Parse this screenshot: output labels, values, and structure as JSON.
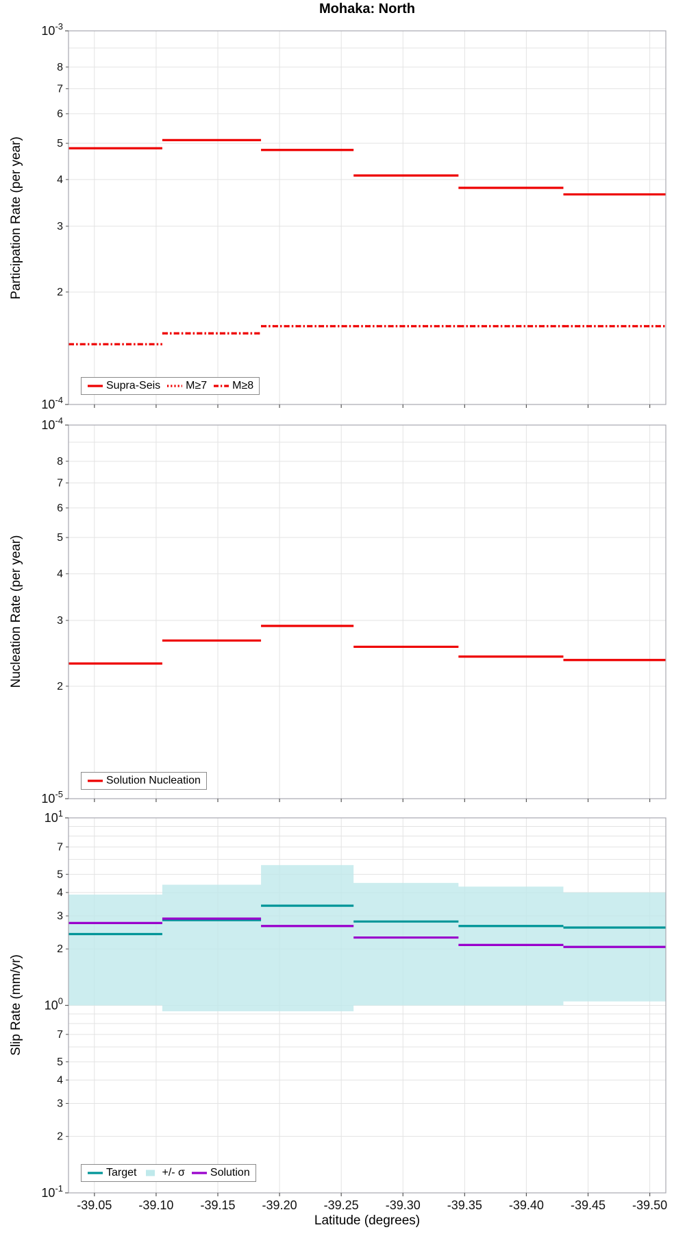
{
  "title": "Mohaka: North",
  "xlabel": "Latitude (degrees)",
  "x_domain": [
    -39.029,
    -39.513
  ],
  "segment_boundaries": [
    -39.029,
    -39.105,
    -39.185,
    -39.26,
    -39.345,
    -39.43,
    -39.513
  ],
  "x_ticks": [
    {
      "v": -39.05,
      "label": "-39.05"
    },
    {
      "v": -39.1,
      "label": "-39.10"
    },
    {
      "v": -39.15,
      "label": "-39.15"
    },
    {
      "v": -39.2,
      "label": "-39.20"
    },
    {
      "v": -39.25,
      "label": "-39.25"
    },
    {
      "v": -39.3,
      "label": "-39.30"
    },
    {
      "v": -39.35,
      "label": "-39.35"
    },
    {
      "v": -39.4,
      "label": "-39.40"
    },
    {
      "v": -39.45,
      "label": "-39.45"
    },
    {
      "v": -39.5,
      "label": "-39.50"
    }
  ],
  "colors": {
    "red": "#ee0000",
    "teal": "#009598",
    "band": "#bfe9eb",
    "purple": "#9900cc",
    "grid": "#e3e3e3",
    "frame": "#a8a8b0"
  },
  "chart_data": [
    {
      "type": "step-line",
      "yscale": "log",
      "ylabel": "Participation Rate (per year)",
      "ylim": [
        0.0001,
        0.001
      ],
      "legend_position": "lower left",
      "y_major_ticks": [
        {
          "value": 0.001,
          "base": "10",
          "exp": "-3"
        },
        {
          "value": 0.0001,
          "base": "10",
          "exp": "-4"
        }
      ],
      "y_minor_labels": [
        {
          "value": 0.0008,
          "label": "8"
        },
        {
          "value": 0.0007,
          "label": "7"
        },
        {
          "value": 0.0006,
          "label": "6"
        },
        {
          "value": 0.0005,
          "label": "5"
        },
        {
          "value": 0.0004,
          "label": "4"
        },
        {
          "value": 0.0003,
          "label": "3"
        },
        {
          "value": 0.0002,
          "label": "2"
        }
      ],
      "series": [
        {
          "name": "Supra-Seis",
          "linestyle": "solid",
          "color": "red",
          "values": [
            0.000485,
            0.00051,
            0.00048,
            0.00041,
            0.00038,
            0.000365
          ]
        },
        {
          "name": "M≥7",
          "linestyle": "dotted",
          "color": "red",
          "values": [
            0.000145,
            0.000155,
            0.000162,
            0.000162,
            0.000162,
            0.000162
          ]
        },
        {
          "name": "M≥8",
          "linestyle": "dashdot",
          "color": "red",
          "values": [
            0.000145,
            0.000155,
            0.000162,
            0.000162,
            0.000162,
            0.000162
          ]
        }
      ]
    },
    {
      "type": "step-line",
      "yscale": "log",
      "ylabel": "Nucleation Rate (per year)",
      "ylim": [
        1e-05,
        0.0001
      ],
      "legend_position": "lower left",
      "y_major_ticks": [
        {
          "value": 0.0001,
          "base": "10",
          "exp": "-4"
        },
        {
          "value": 1e-05,
          "base": "10",
          "exp": "-5"
        }
      ],
      "y_minor_labels": [
        {
          "value": 8e-05,
          "label": "8"
        },
        {
          "value": 7e-05,
          "label": "7"
        },
        {
          "value": 6e-05,
          "label": "6"
        },
        {
          "value": 5e-05,
          "label": "5"
        },
        {
          "value": 4e-05,
          "label": "4"
        },
        {
          "value": 3e-05,
          "label": "3"
        },
        {
          "value": 2e-05,
          "label": "2"
        }
      ],
      "series": [
        {
          "name": "Solution Nucleation",
          "linestyle": "solid",
          "color": "red",
          "values": [
            2.3e-05,
            2.65e-05,
            2.9e-05,
            2.55e-05,
            2.4e-05,
            2.35e-05
          ]
        }
      ]
    },
    {
      "type": "step-line",
      "yscale": "log",
      "ylabel": "Slip Rate (mm/yr)",
      "ylim": [
        0.1,
        10
      ],
      "legend_position": "lower left",
      "y_major_ticks": [
        {
          "value": 10,
          "base": "10",
          "exp": "1"
        },
        {
          "value": 1,
          "base": "10",
          "exp": "0"
        },
        {
          "value": 0.1,
          "base": "10",
          "exp": "-1"
        }
      ],
      "y_minor_labels": [
        {
          "value": 7,
          "label": "7"
        },
        {
          "value": 5,
          "label": "5"
        },
        {
          "value": 4,
          "label": "4"
        },
        {
          "value": 3,
          "label": "3"
        },
        {
          "value": 2,
          "label": "2"
        },
        {
          "value": 0.7,
          "label": "7"
        },
        {
          "value": 0.5,
          "label": "5"
        },
        {
          "value": 0.4,
          "label": "4"
        },
        {
          "value": 0.3,
          "label": "3"
        },
        {
          "value": 0.2,
          "label": "2"
        }
      ],
      "band": {
        "name": "+/- σ",
        "color": "band",
        "upper": [
          3.9,
          4.4,
          5.6,
          4.5,
          4.3,
          4.0
        ],
        "lower": [
          1.0,
          0.93,
          0.93,
          1.0,
          1.0,
          1.05
        ]
      },
      "series": [
        {
          "name": "Target",
          "linestyle": "solid",
          "color": "teal",
          "values": [
            2.4,
            2.85,
            3.4,
            2.8,
            2.65,
            2.6
          ]
        },
        {
          "name": "Solution",
          "linestyle": "solid",
          "color": "purple",
          "values": [
            2.75,
            2.9,
            2.65,
            2.3,
            2.1,
            2.05
          ]
        }
      ]
    }
  ]
}
